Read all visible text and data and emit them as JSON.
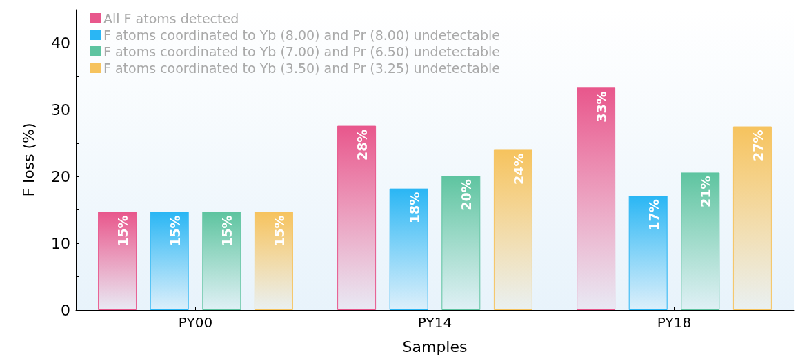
{
  "chart_data": {
    "type": "bar",
    "xlabel": "Samples",
    "ylabel": "F loss (%)",
    "categories": [
      "PY00",
      "PY14",
      "PY18"
    ],
    "series": [
      {
        "name": "All F atoms detected",
        "color": "#e8578c",
        "values": [
          14.7,
          27.6,
          33.3
        ],
        "value_labels": [
          "15%",
          "28%",
          "33%"
        ]
      },
      {
        "name": "F atoms coordinated to Yb (8.00) and Pr (8.00) undetectable",
        "color": "#2ab6f4",
        "values": [
          14.7,
          18.2,
          17.1
        ],
        "value_labels": [
          "15%",
          "18%",
          "17%"
        ]
      },
      {
        "name": "F atoms coordinated to Yb (7.00) and Pr (6.50) undetectable",
        "color": "#5ec4a0",
        "values": [
          14.7,
          20.1,
          20.6
        ],
        "value_labels": [
          "15%",
          "20%",
          "21%"
        ]
      },
      {
        "name": "F atoms coordinated to Yb (3.50) and Pr (3.25) undetectable",
        "color": "#f6c35e",
        "values": [
          14.7,
          24.0,
          27.5
        ],
        "value_labels": [
          "15%",
          "24%",
          "27%"
        ]
      }
    ],
    "ylim": [
      0,
      45
    ],
    "yticks": [
      0,
      {
        "value": 5,
        "label": null
      },
      10,
      {
        "value": 15,
        "label": null
      },
      20,
      {
        "value": 25,
        "label": null
      },
      30,
      {
        "value": 35,
        "label": null
      },
      40
    ],
    "grid": false,
    "legend": "top left"
  }
}
